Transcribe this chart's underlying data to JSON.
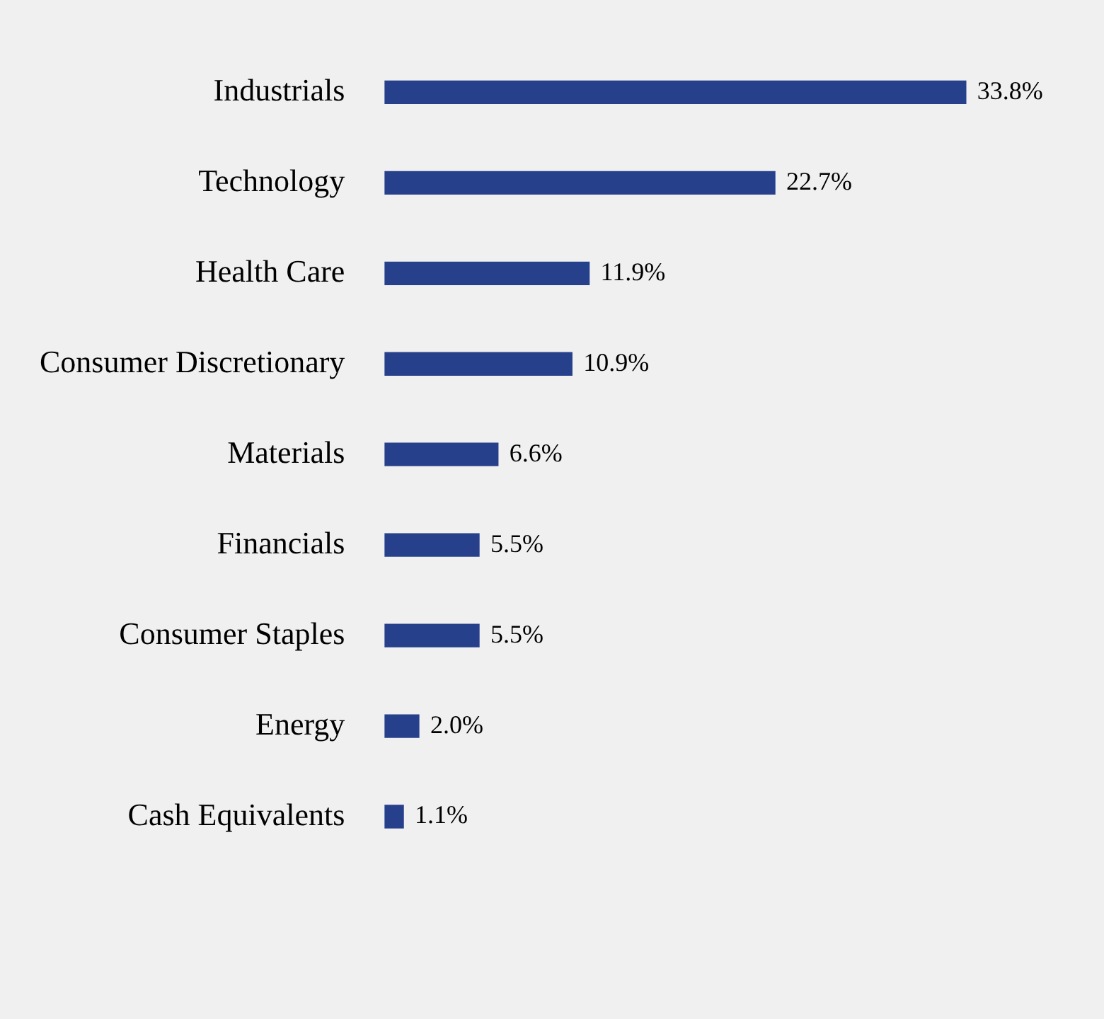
{
  "chart_data": {
    "type": "bar",
    "orientation": "horizontal",
    "categories": [
      "Industrials",
      "Technology",
      "Health Care",
      "Consumer Discretionary",
      "Materials",
      "Financials",
      "Consumer Staples",
      "Energy",
      "Cash Equivalents"
    ],
    "values": [
      33.8,
      22.7,
      11.9,
      10.9,
      6.6,
      5.5,
      5.5,
      2.0,
      1.1
    ],
    "value_labels": [
      "33.8%",
      "22.7%",
      "11.9%",
      "10.9%",
      "6.6%",
      "5.5%",
      "5.5%",
      "2.0%",
      "1.1%"
    ],
    "color": "#27408b"
  }
}
